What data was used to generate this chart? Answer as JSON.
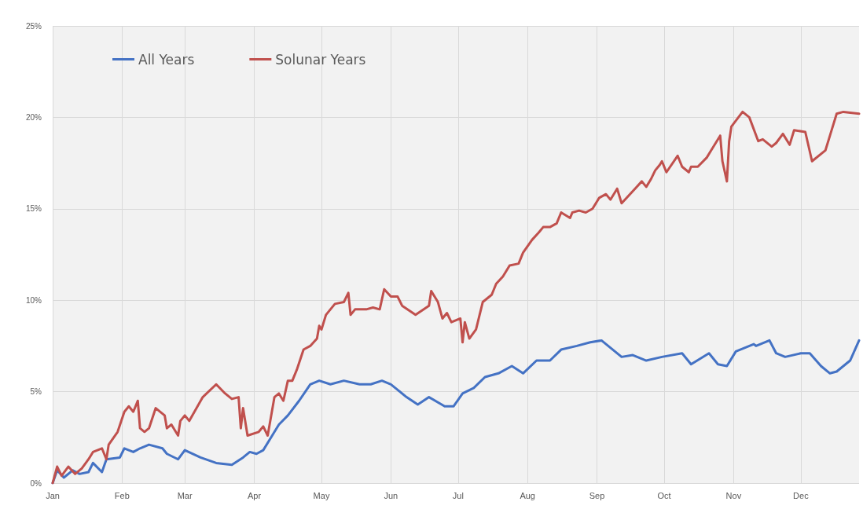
{
  "chart_data": {
    "type": "line",
    "xlim": [
      "--01-01",
      "--12-27"
    ],
    "xticks": [
      {
        "value": "--01-01",
        "label": "Jan"
      },
      {
        "value": "--02-01",
        "label": "Feb"
      },
      {
        "value": "--03-01",
        "label": "Mar"
      },
      {
        "value": "--04-01",
        "label": "Apr"
      },
      {
        "value": "--05-01",
        "label": "May"
      },
      {
        "value": "--06-01",
        "label": "Jun"
      },
      {
        "value": "--07-01",
        "label": "Jul"
      },
      {
        "value": "--08-01",
        "label": "Aug"
      },
      {
        "value": "--09-01",
        "label": "Sep"
      },
      {
        "value": "--10-01",
        "label": "Oct"
      },
      {
        "value": "--11-01",
        "label": "Nov"
      },
      {
        "value": "--12-01",
        "label": "Dec"
      }
    ],
    "ylim": [
      0,
      25
    ],
    "yticks": [
      {
        "value": 0,
        "label": "0%"
      },
      {
        "value": 5,
        "label": "5%"
      },
      {
        "value": 10,
        "label": "10%"
      },
      {
        "value": 15,
        "label": "15%"
      },
      {
        "value": 20,
        "label": "20%"
      },
      {
        "value": 25,
        "label": "25%"
      }
    ],
    "grid": true,
    "legend": "top left",
    "marker": "none",
    "line_style": "solid",
    "series": [
      {
        "name": "All Years",
        "color": "#4472c4",
        "x": [
          "--01-01",
          "--01-03",
          "--01-06",
          "--01-10",
          "--01-13",
          "--01-17",
          "--01-19",
          "--01-23",
          "--01-25",
          "--01-31",
          "--02-02",
          "--02-06",
          "--02-09",
          "--02-13",
          "--02-19",
          "--02-21",
          "--02-26",
          "--03-01",
          "--03-08",
          "--03-15",
          "--03-22",
          "--03-27",
          "--03-30",
          "--04-02",
          "--04-05",
          "--04-09",
          "--04-12",
          "--04-16",
          "--04-21",
          "--04-26",
          "--04-30",
          "--05-05",
          "--05-11",
          "--05-18",
          "--05-23",
          "--05-28",
          "--06-01",
          "--06-08",
          "--06-13",
          "--06-18",
          "--06-25",
          "--06-29",
          "--07-03",
          "--07-08",
          "--07-13",
          "--07-19",
          "--07-25",
          "--07-30",
          "--08-05",
          "--08-11",
          "--08-16",
          "--08-23",
          "--08-29",
          "--09-03",
          "--09-12",
          "--09-17",
          "--09-23",
          "--09-30",
          "--10-09",
          "--10-13",
          "--10-21",
          "--10-25",
          "--10-29",
          "--11-02",
          "--11-10",
          "--11-11",
          "--11-17",
          "--11-20",
          "--11-24",
          "--12-01",
          "--12-05",
          "--12-10",
          "--12-14",
          "--12-17",
          "--12-23",
          "--12-27"
        ],
        "values": [
          0,
          0.7,
          0.3,
          0.7,
          0.5,
          0.6,
          1.1,
          0.6,
          1.3,
          1.4,
          1.9,
          1.7,
          1.9,
          2.1,
          1.9,
          1.6,
          1.3,
          1.8,
          1.4,
          1.1,
          1.0,
          1.4,
          1.7,
          1.6,
          1.8,
          2.6,
          3.2,
          3.7,
          4.5,
          5.4,
          5.6,
          5.4,
          5.6,
          5.4,
          5.4,
          5.6,
          5.4,
          4.7,
          4.3,
          4.7,
          4.2,
          4.2,
          4.9,
          5.2,
          5.8,
          6.0,
          6.4,
          6.0,
          6.7,
          6.7,
          7.3,
          7.5,
          7.7,
          7.8,
          6.9,
          7.0,
          6.7,
          6.9,
          7.1,
          6.5,
          7.1,
          6.5,
          6.4,
          7.2,
          7.6,
          7.5,
          7.8,
          7.1,
          6.9,
          7.1,
          7.1,
          6.4,
          6.0,
          6.1,
          6.7,
          7.8
        ]
      },
      {
        "name": "Solunar Years",
        "color": "#c0504d",
        "x": [
          "--01-01",
          "--01-03",
          "--01-05",
          "--01-08",
          "--01-11",
          "--01-14",
          "--01-17",
          "--01-19",
          "--01-23",
          "--01-25",
          "--01-26",
          "--01-30",
          "--02-02",
          "--02-04",
          "--02-06",
          "--02-08",
          "--02-09",
          "--02-11",
          "--02-13",
          "--02-16",
          "--02-20",
          "--02-21",
          "--02-23",
          "--02-26",
          "--02-27",
          "--03-01",
          "--03-03",
          "--03-09",
          "--03-15",
          "--03-19",
          "--03-22",
          "--03-25",
          "--03-26",
          "--03-27",
          "--03-29",
          "--04-03",
          "--04-05",
          "--04-07",
          "--04-10",
          "--04-12",
          "--04-14",
          "--04-16",
          "--04-18",
          "--04-20",
          "--04-23",
          "--04-26",
          "--04-29",
          "--04-30",
          "--05-01",
          "--05-03",
          "--05-07",
          "--05-11",
          "--05-13",
          "--05-14",
          "--05-16",
          "--05-21",
          "--05-24",
          "--05-27",
          "--05-29",
          "--06-01",
          "--06-04",
          "--06-06",
          "--06-12",
          "--06-18",
          "--06-19",
          "--06-22",
          "--06-24",
          "--06-26",
          "--06-28",
          "--07-02",
          "--07-03",
          "--07-04",
          "--07-06",
          "--07-09",
          "--07-12",
          "--07-16",
          "--07-18",
          "--07-21",
          "--07-24",
          "--07-28",
          "--07-30",
          "--08-03",
          "--08-06",
          "--08-08",
          "--08-11",
          "--08-14",
          "--08-16",
          "--08-20",
          "--08-21",
          "--08-24",
          "--08-27",
          "--08-30",
          "--09-02",
          "--09-05",
          "--09-07",
          "--09-10",
          "--09-12",
          "--09-15",
          "--09-18",
          "--09-21",
          "--09-23",
          "--09-25",
          "--09-27",
          "--09-29",
          "--09-30",
          "--10-02",
          "--10-07",
          "--10-09",
          "--10-12",
          "--10-13",
          "--10-16",
          "--10-20",
          "--10-22",
          "--10-26",
          "--10-27",
          "--10-29",
          "--10-30",
          "--10-31",
          "--11-05",
          "--11-08",
          "--11-12",
          "--11-14",
          "--11-18",
          "--11-20",
          "--11-23",
          "--11-26",
          "--11-28",
          "--12-03",
          "--12-06",
          "--12-12",
          "--12-14",
          "--12-17",
          "--12-20",
          "--12-27"
        ],
        "values": [
          0,
          0.9,
          0.4,
          0.9,
          0.5,
          0.8,
          1.3,
          1.7,
          1.9,
          1.3,
          2.1,
          2.8,
          3.9,
          4.2,
          3.9,
          4.5,
          3.0,
          2.8,
          3.0,
          4.1,
          3.7,
          3.0,
          3.2,
          2.6,
          3.4,
          3.7,
          3.4,
          4.7,
          5.4,
          4.9,
          4.6,
          4.7,
          3.0,
          4.1,
          2.6,
          2.8,
          3.1,
          2.6,
          4.7,
          4.9,
          4.5,
          5.6,
          5.6,
          6.2,
          7.3,
          7.5,
          7.9,
          8.6,
          8.4,
          9.2,
          9.8,
          9.9,
          10.4,
          9.2,
          9.5,
          9.5,
          9.6,
          9.5,
          10.6,
          10.2,
          10.2,
          9.7,
          9.2,
          9.7,
          10.5,
          9.9,
          9.0,
          9.3,
          8.8,
          9.0,
          7.7,
          8.8,
          7.9,
          8.4,
          9.9,
          10.3,
          10.9,
          11.3,
          11.9,
          12.0,
          12.6,
          13.3,
          13.7,
          14.0,
          14.0,
          14.2,
          14.8,
          14.5,
          14.8,
          14.9,
          14.8,
          15.0,
          15.6,
          15.8,
          15.5,
          16.1,
          15.3,
          15.7,
          16.1,
          16.5,
          16.2,
          16.6,
          17.1,
          17.4,
          17.6,
          17.0,
          17.9,
          17.3,
          17.0,
          17.3,
          17.3,
          17.8,
          18.2,
          19.0,
          17.6,
          16.5,
          18.7,
          19.5,
          20.3,
          20.0,
          18.7,
          18.8,
          18.4,
          18.6,
          19.1,
          18.5,
          19.3,
          19.2,
          17.6,
          18.2,
          19.0,
          20.2,
          20.3,
          20.2
        ]
      }
    ]
  }
}
